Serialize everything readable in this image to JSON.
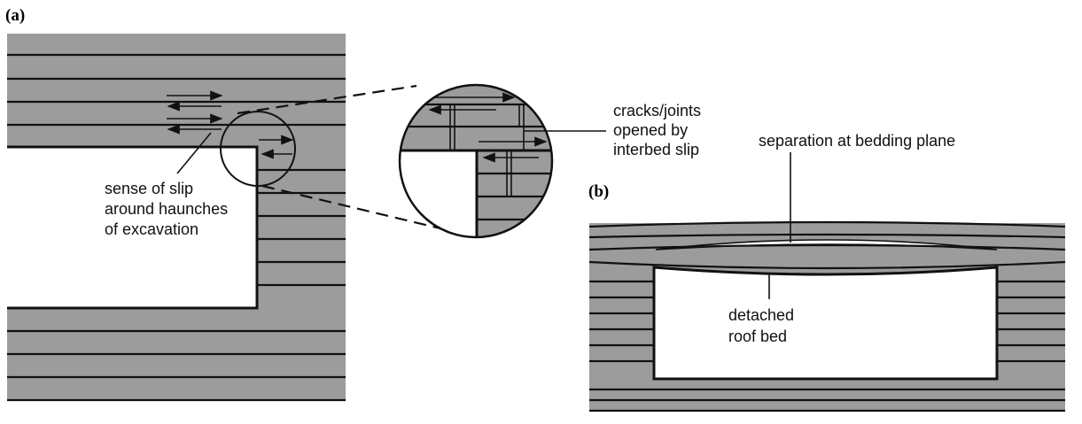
{
  "panels": {
    "a": {
      "label": "(a)"
    },
    "b": {
      "label": "(b)"
    }
  },
  "labels": {
    "slip_line1": "sense of slip",
    "slip_line2": "around haunches",
    "slip_line3": "of excavation",
    "cracks_line1": "cracks/joints",
    "cracks_line2": "opened by",
    "cracks_line3": "interbed slip",
    "separation": "separation at bedding plane",
    "roof_line1": "detached",
    "roof_line2": "roof bed"
  },
  "colors": {
    "rock": "#9c9c9c",
    "ink": "#111111",
    "void": "#ffffff"
  }
}
